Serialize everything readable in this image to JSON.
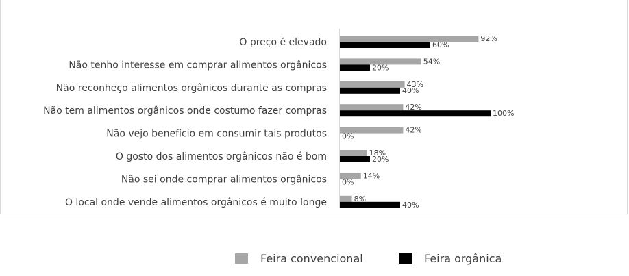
{
  "chart_data": {
    "type": "bar",
    "orientation": "horizontal",
    "categories": [
      "O preço é elevado",
      "Não tenho interesse em comprar alimentos orgânicos",
      "Não reconheço alimentos orgânicos durante as compras",
      "Não tem alimentos orgânicos onde costumo fazer compras",
      "Não vejo benefício em consumir tais produtos",
      "O gosto dos alimentos orgânicos não é bom",
      "Não sei onde comprar alimentos orgânicos",
      "O local onde vende alimentos orgânicos é muito longe"
    ],
    "series": [
      {
        "name": "Feira convencional",
        "color": "#a6a6a6",
        "values": [
          92,
          54,
          43,
          42,
          42,
          18,
          14,
          8
        ],
        "labels": [
          "92%",
          "54%",
          "43%",
          "42%",
          "42%",
          "18%",
          "14%",
          "8%"
        ]
      },
      {
        "name": "Feira orgânica",
        "color": "#000000",
        "values": [
          60,
          20,
          40,
          100,
          0,
          20,
          0,
          40
        ],
        "labels": [
          "60%",
          "20%",
          "40%",
          "100%",
          "0%",
          "20%",
          "0%",
          "40%"
        ]
      }
    ],
    "xlim": [
      0,
      100
    ],
    "unit": "%",
    "grid": false,
    "legend": "bottom"
  }
}
